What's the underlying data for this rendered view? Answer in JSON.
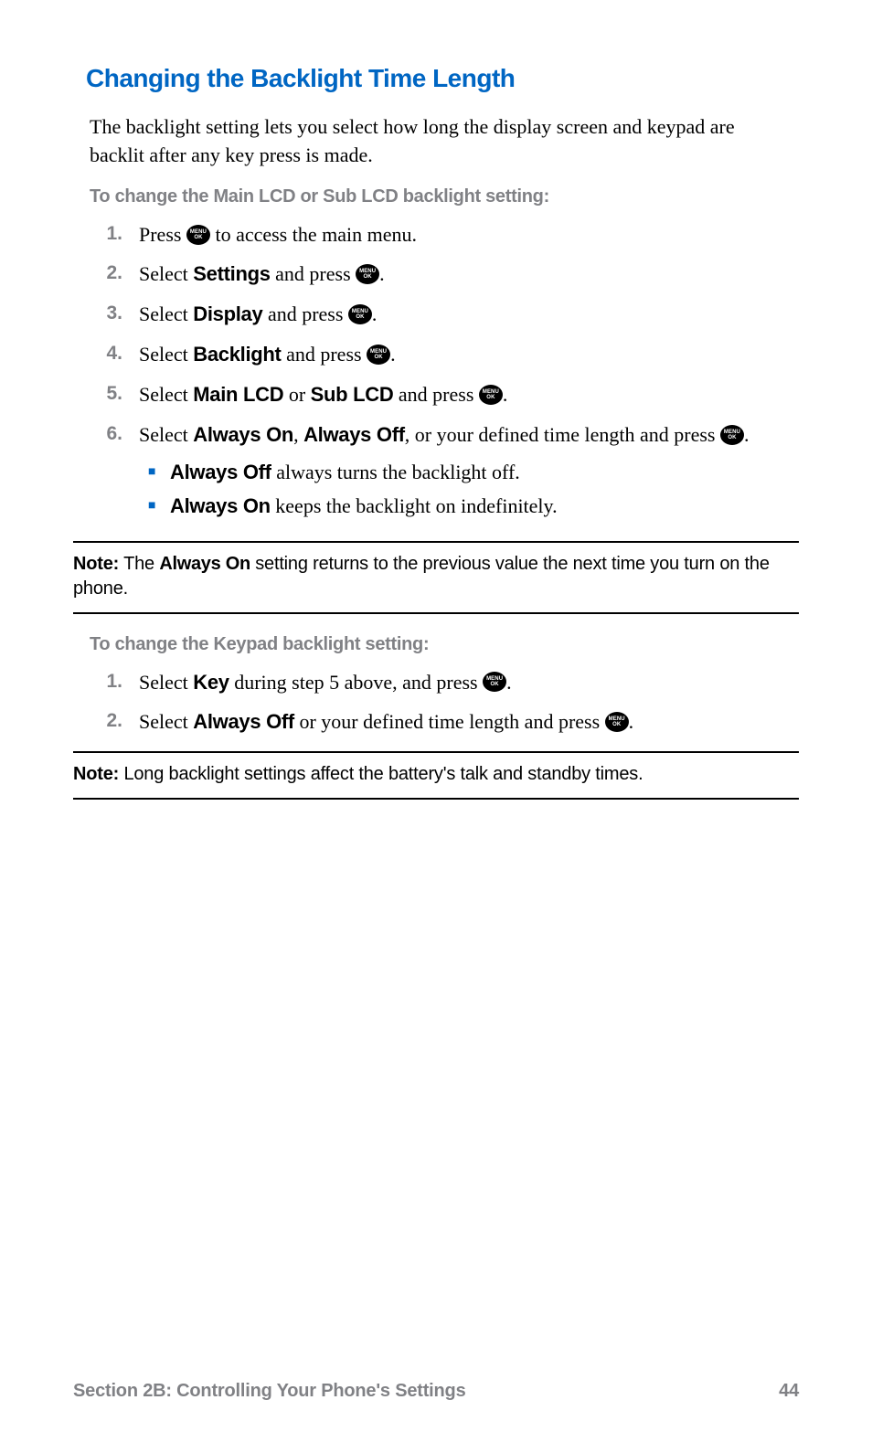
{
  "colors": {
    "heading": "#0066c3",
    "subhead": "#808185",
    "text": "#000000",
    "bullet": "#0066c3",
    "note_rule": "#000000",
    "footer": "#808185",
    "background": "#ffffff"
  },
  "typography": {
    "heading_size_pt": 21,
    "body_size_pt": 16,
    "subhead_size_pt": 15,
    "note_size_pt": 15,
    "footer_size_pt": 15
  },
  "heading": "Changing the Backlight Time Length",
  "intro": "The backlight setting lets you select how long the display screen and keypad are backlit after any key press is made.",
  "subhead1": "To change the Main LCD or Sub LCD backlight setting:",
  "icon": {
    "top": "MENU",
    "bottom": "OK"
  },
  "steps1": [
    {
      "n": "1.",
      "pre": "Press ",
      "post": " to access the main menu.",
      "icon": true
    },
    {
      "n": "2.",
      "pre": "Select ",
      "b1": "Settings",
      "mid": " and press ",
      "icon": true,
      "post": "."
    },
    {
      "n": "3.",
      "pre": "Select ",
      "b1": "Display",
      "mid": " and press ",
      "icon": true,
      "post": "."
    },
    {
      "n": "4.",
      "pre": "Select ",
      "b1": "Backlight",
      "mid": " and press ",
      "icon": true,
      "post": "."
    },
    {
      "n": "5.",
      "pre": "Select ",
      "b1": "Main LCD",
      "mid1": " or ",
      "b2": "Sub LCD",
      "mid": " and press ",
      "icon": true,
      "post": "."
    },
    {
      "n": "6.",
      "pre": "Select ",
      "b1": "Always On",
      "mid1": ", ",
      "b2": "Always Off",
      "mid2": ", or your defined time length and press ",
      "icon": true,
      "post": ".",
      "sub": [
        {
          "b": "Always Off",
          "t": " always turns the backlight off."
        },
        {
          "b": "Always On",
          "t": " keeps the backlight on indefinitely."
        }
      ]
    }
  ],
  "note1": {
    "label": "Note:",
    "pre": " The ",
    "b": "Always On",
    "post": " setting returns to the previous value the next time you turn on the phone."
  },
  "subhead2": "To change the Keypad backlight setting:",
  "steps2": [
    {
      "n": "1.",
      "pre": "Select ",
      "b1": "Key",
      "mid": " during step 5 above, and press ",
      "icon": true,
      "post": "."
    },
    {
      "n": "2.",
      "pre": "Select ",
      "b1": "Always Off",
      "mid": " or your defined time length and press ",
      "icon": true,
      "post": "."
    }
  ],
  "note2": {
    "label": "Note:",
    "post": " Long backlight settings affect the battery's talk and standby times."
  },
  "footer": {
    "section": "Section 2B: Controlling Your Phone's Settings",
    "page": "44"
  }
}
